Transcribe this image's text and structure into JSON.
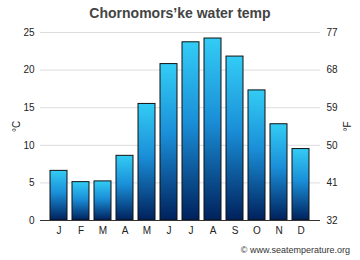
{
  "chart_data": {
    "type": "bar",
    "title": "Chornomors’ke water temp",
    "categories": [
      "J",
      "F",
      "M",
      "A",
      "M",
      "J",
      "J",
      "A",
      "S",
      "O",
      "N",
      "D"
    ],
    "values": [
      6.6,
      5.1,
      5.2,
      8.6,
      15.5,
      20.8,
      23.7,
      24.2,
      21.8,
      17.3,
      12.8,
      9.5
    ],
    "color": "#1a8fd8",
    "ylabel": "°C",
    "ylim": [
      0,
      25
    ],
    "yticks": [
      0,
      5,
      10,
      15,
      20,
      25
    ],
    "y2label": "°F",
    "y2lim": [
      32,
      77
    ],
    "y2ticks": [
      32,
      41,
      50,
      59,
      68,
      77
    ],
    "grid": true,
    "caption": "© www.seatemperature.org"
  }
}
